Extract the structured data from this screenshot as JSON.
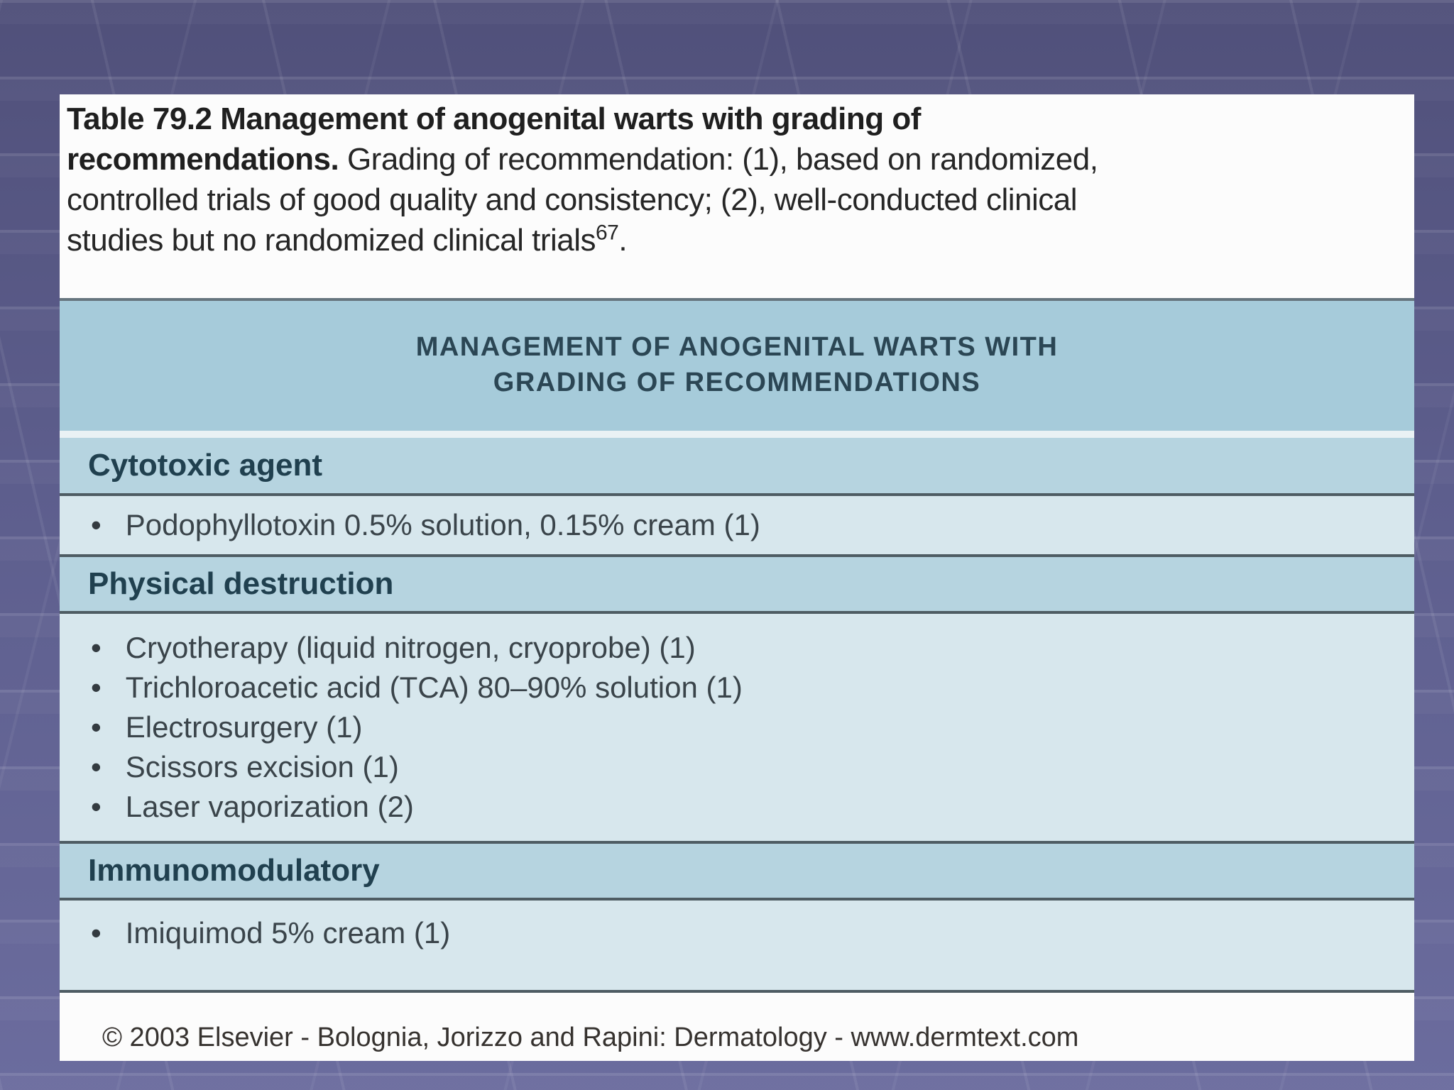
{
  "slide": {
    "caption": {
      "lines": [
        {
          "bold": "Table 79.2  Management of anogenital warts with grading of",
          "regular": "",
          "sup": "",
          "tail": ""
        },
        {
          "bold": "recommendations.",
          "regular": " Grading of recommendation: (1), based on randomized,",
          "sup": "",
          "tail": ""
        },
        {
          "bold": "",
          "regular": "controlled trials of good quality and consistency; (2), well-conducted clinical",
          "sup": "",
          "tail": ""
        },
        {
          "bold": "",
          "regular": "studies but no randomized clinical trials",
          "sup": "67",
          "tail": "."
        }
      ]
    },
    "table": {
      "title_line1": "MANAGEMENT OF ANOGENITAL WARTS WITH",
      "title_line2": "GRADING OF RECOMMENDATIONS",
      "bullet_glyph": "•",
      "sections": [
        {
          "label": "Cytotoxic agent",
          "items": [
            "Podophyllotoxin 0.5% solution, 0.15% cream (1)"
          ]
        },
        {
          "label": "Physical destruction",
          "items": [
            "Cryotherapy (liquid nitrogen, cryoprobe) (1)",
            "Trichloroacetic acid (TCA) 80–90% solution (1)",
            "Electrosurgery (1)",
            "Scissors excision (1)",
            "Laser vaporization (2)"
          ]
        },
        {
          "label": "Immunomodulatory",
          "items": [
            "Imiquimod 5% cream (1)"
          ]
        }
      ]
    },
    "footer": {
      "credit": "© 2003 Elsevier - Bolognia, Jorizzo and Rapini: Dermatology - www.dermtext.com"
    },
    "colors": {
      "background_purple": "#5b5c8c",
      "grid_line": "#8486b0",
      "header_band": "#a6cbda",
      "section_band": "#b6d4e0",
      "item_band": "#d7e7ed",
      "separator": "#4e5c63",
      "title_text": "#2b4654",
      "body_text": "#3a444a",
      "caption_background": "#fcfcfc"
    }
  }
}
